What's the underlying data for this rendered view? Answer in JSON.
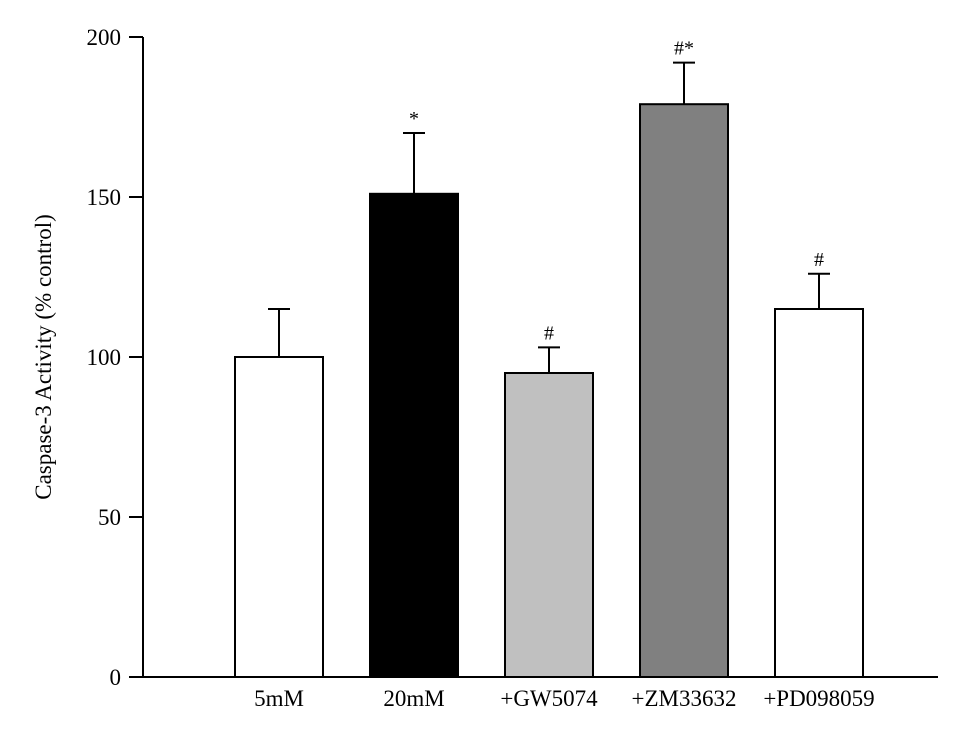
{
  "chart_data": {
    "type": "bar",
    "title": "",
    "xlabel": "",
    "ylabel": "Caspase-3 Activity (% control)",
    "ylim": [
      0,
      200
    ],
    "yticks": [
      0,
      50,
      100,
      150,
      200
    ],
    "grid": false,
    "legend": "none",
    "categories": [
      "5mM",
      "20mM",
      "+GW5074",
      "+ZM33632",
      "+PD098059"
    ],
    "values": [
      100,
      151,
      95,
      179,
      115
    ],
    "errors": [
      15,
      19,
      8,
      13,
      11
    ],
    "significance": [
      "",
      "*",
      "#",
      "#*",
      "#"
    ],
    "bar_colors": [
      "#ffffff",
      "#000000",
      "#c0c0c0",
      "#808080",
      "#ffffff"
    ]
  }
}
